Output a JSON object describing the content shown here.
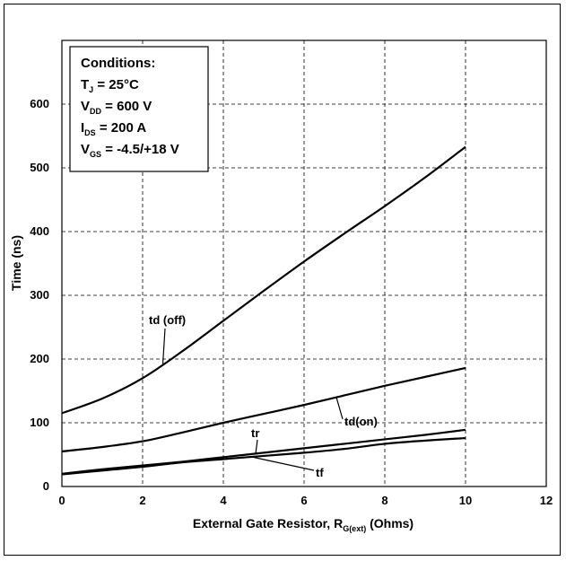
{
  "chart_data": {
    "type": "line",
    "xlabel": {
      "prefix": "External Gate Resistor, R",
      "subscript": "G(ext)",
      "suffix": " (Ohms)"
    },
    "ylabel": "Time (ns)",
    "xlim": [
      0,
      12
    ],
    "ylim": [
      0,
      700
    ],
    "xticks": [
      "0",
      "2",
      "4",
      "6",
      "8",
      "10",
      "12"
    ],
    "yticks": [
      "0",
      "100",
      "200",
      "300",
      "400",
      "500",
      "600"
    ],
    "grid": true,
    "conditions": {
      "title": "Conditions:",
      "lines": [
        {
          "main": "T",
          "sub": "J",
          "rest": " = 25°C"
        },
        {
          "main": "V",
          "sub": "DD",
          "rest": " = 600 V"
        },
        {
          "main": "I",
          "sub": "DS",
          "rest": " = 200 A"
        },
        {
          "main": "V",
          "sub": "GS",
          "rest": " = -4.5/+18 V"
        }
      ]
    },
    "series": [
      {
        "name": "td (off)",
        "x": [
          0,
          1,
          2,
          3,
          4,
          5,
          6,
          7,
          8,
          9,
          10
        ],
        "values": [
          115,
          138,
          170,
          213,
          260,
          307,
          353,
          397,
          440,
          485,
          533
        ]
      },
      {
        "name": "td(on)",
        "x": [
          0,
          1,
          2,
          3,
          4,
          5,
          6,
          7,
          8,
          9,
          10
        ],
        "values": [
          55,
          62,
          71,
          85,
          100,
          114,
          128,
          143,
          158,
          172,
          186
        ]
      },
      {
        "name": "tr",
        "x": [
          0,
          1,
          2,
          3,
          4,
          5,
          6,
          7,
          8,
          9,
          10
        ],
        "values": [
          20,
          27,
          33,
          39,
          46,
          53,
          60,
          67,
          74,
          81,
          89
        ]
      },
      {
        "name": "tf",
        "x": [
          0,
          1,
          2,
          3,
          4,
          5,
          6,
          7,
          8,
          9,
          10
        ],
        "values": [
          19,
          25,
          31,
          38,
          43,
          48,
          53,
          59,
          67,
          72,
          76
        ]
      }
    ],
    "labels": [
      {
        "series": "td (off)",
        "text": "td (off)"
      },
      {
        "series": "td(on)",
        "text": "td(on)"
      },
      {
        "series": "tr",
        "text": "tr"
      },
      {
        "series": "tf",
        "text": "tf"
      }
    ]
  }
}
